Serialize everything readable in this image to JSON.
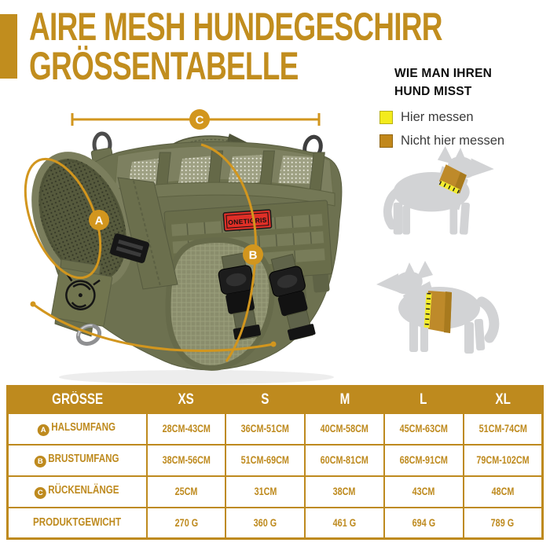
{
  "title": {
    "line1": "AIRE MESH HUNDEGESCHIRR",
    "line2": "GRÖSSENTABELLE"
  },
  "measure_guide": {
    "heading_line1": "WIE MAN IHREN",
    "heading_line2": "HUND MISST",
    "legend": [
      {
        "label": "Hier messen",
        "color": "#f3eb1c"
      },
      {
        "label": "Nicht hier messen",
        "color": "#c1871a"
      }
    ]
  },
  "markers": {
    "a": "A",
    "b": "B",
    "c": "C"
  },
  "brand_patch": "ONETIGRIS",
  "colors": {
    "title_gold": "#c18d1e",
    "table_gold": "#be8a1e",
    "marker_gold": "#d2961e",
    "harness_olive": "#6d7150",
    "patch_red": "#df2f27",
    "dog_gray": "#d2d3d5",
    "tape_yellow": "#f3ec2e",
    "band_goldenrod": "#be8a2a"
  },
  "table": {
    "columns": [
      "GRÖSSE",
      "XS",
      "S",
      "M",
      "L",
      "XL"
    ],
    "rows": [
      {
        "marker": "A",
        "label": "HALSUMFANG",
        "values": [
          "28CM-43CM",
          "36CM-51CM",
          "40CM-58CM",
          "45CM-63CM",
          "51CM-74CM"
        ]
      },
      {
        "marker": "B",
        "label": "BRUSTUMFANG",
        "values": [
          "38CM-56CM",
          "51CM-69CM",
          "60CM-81CM",
          "68CM-91CM",
          "79CM-102CM"
        ]
      },
      {
        "marker": "C",
        "label": "RÜCKENLÄNGE",
        "values": [
          "25CM",
          "31CM",
          "38CM",
          "43CM",
          "48CM"
        ]
      },
      {
        "marker": "",
        "label": "PRODUKTGEWICHT",
        "values": [
          "270 G",
          "360 G",
          "461 G",
          "694 G",
          "789 G"
        ]
      }
    ]
  }
}
